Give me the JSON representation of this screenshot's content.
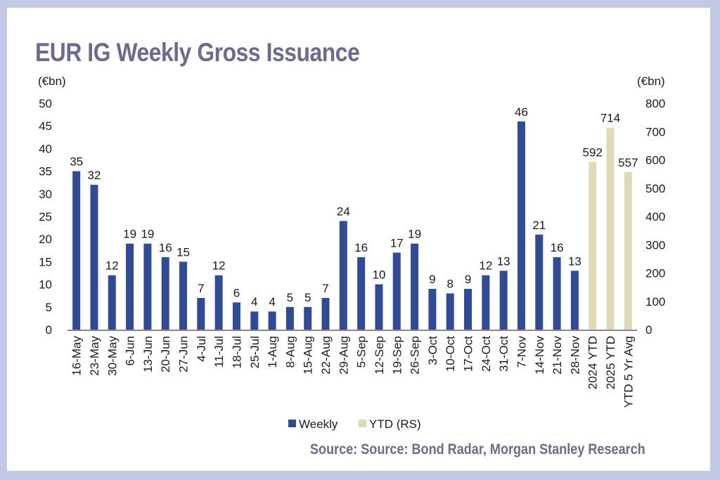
{
  "chart_data": {
    "type": "bar",
    "title": "EUR IG Weekly Gross Issuance",
    "source": "Source: Source: Bond Radar, Morgan Stanley Research",
    "left_axis": {
      "unit_label": "(€bn)",
      "ylim": [
        0,
        50
      ],
      "ticks": [
        0,
        5,
        10,
        15,
        20,
        25,
        30,
        35,
        40,
        45,
        50
      ]
    },
    "right_axis": {
      "unit_label": "(€bn)",
      "ylim": [
        0,
        800
      ],
      "ticks": [
        0,
        100,
        200,
        300,
        400,
        500,
        600,
        700,
        800
      ]
    },
    "grid": false,
    "legend_position": "bottom",
    "categories": [
      "16-May",
      "23-May",
      "30-May",
      "6-Jun",
      "13-Jun",
      "20-Jun",
      "27-Jun",
      "4-Jul",
      "11-Jul",
      "18-Jul",
      "25-Jul",
      "1-Aug",
      "8-Aug",
      "15-Aug",
      "22-Aug",
      "29-Aug",
      "5-Sep",
      "12-Sep",
      "19-Sep",
      "26-Sep",
      "3-Oct",
      "10-Oct",
      "17-Oct",
      "24-Oct",
      "31-Oct",
      "7-Nov",
      "14-Nov",
      "21-Nov",
      "28-Nov",
      "2024 YTD",
      "2025 YTD",
      "YTD 5 Yr Avg"
    ],
    "series": [
      {
        "name": "Weekly",
        "axis": "left",
        "color": "#2f4b97",
        "values": [
          35,
          32,
          12,
          19,
          19,
          16,
          15,
          7,
          12,
          6,
          4,
          4,
          5,
          5,
          7,
          24,
          16,
          10,
          17,
          19,
          9,
          8,
          9,
          12,
          13,
          46,
          21,
          16,
          13,
          null,
          null,
          null
        ],
        "labels": [
          "35",
          "32",
          "12",
          "19",
          "19",
          "16",
          "15",
          "7",
          "12",
          "6",
          "4",
          "4",
          "5",
          "5",
          "7",
          "24",
          "16",
          "10",
          "17",
          "19",
          "9",
          "8",
          "9",
          "12",
          "13",
          "46",
          "21",
          "16",
          "13",
          null,
          null,
          null
        ]
      },
      {
        "name": "YTD (RS)",
        "axis": "right",
        "color": "#e0d9b6",
        "values": [
          null,
          null,
          null,
          null,
          null,
          null,
          null,
          null,
          null,
          null,
          null,
          null,
          null,
          null,
          null,
          null,
          null,
          null,
          null,
          null,
          null,
          null,
          null,
          null,
          null,
          null,
          null,
          null,
          null,
          592,
          714,
          557
        ],
        "labels": [
          null,
          null,
          null,
          null,
          null,
          null,
          null,
          null,
          null,
          null,
          null,
          null,
          null,
          null,
          null,
          null,
          null,
          null,
          null,
          null,
          null,
          null,
          null,
          null,
          null,
          null,
          null,
          null,
          null,
          "592",
          "714",
          "557"
        ]
      }
    ]
  }
}
